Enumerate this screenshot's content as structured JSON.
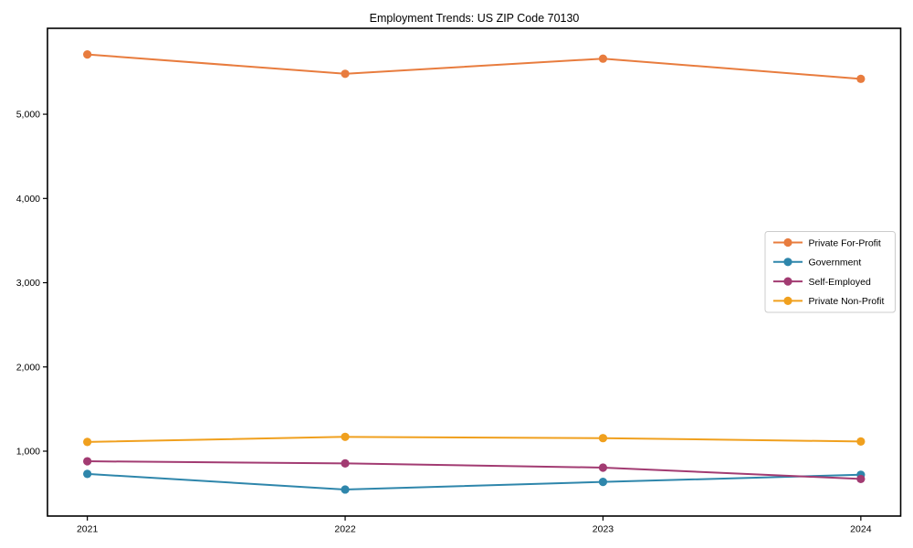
{
  "chart_data": {
    "type": "line",
    "title": "Employment Trends: US ZIP Code 70130",
    "categories": [
      "2021",
      "2022",
      "2023",
      "2024"
    ],
    "series": [
      {
        "name": "Private For-Profit",
        "color": "#E87C3E",
        "values": [
          5710,
          5480,
          5660,
          5420
        ]
      },
      {
        "name": "Government",
        "color": "#2E86AB",
        "values": [
          730,
          545,
          635,
          720
        ]
      },
      {
        "name": "Self-Employed",
        "color": "#A23B72",
        "values": [
          880,
          855,
          805,
          670
        ]
      },
      {
        "name": "Private Non-Profit",
        "color": "#F0A01E",
        "values": [
          1110,
          1170,
          1155,
          1115
        ]
      }
    ],
    "xlabel": "",
    "ylabel": "",
    "ylim": [
      230,
      6020
    ],
    "yticks": [
      1000,
      2000,
      3000,
      4000,
      5000
    ],
    "ytick_format": "comma",
    "grid": false,
    "frame": true,
    "marker": "circle",
    "axis_color": "#000000",
    "background": "#ffffff",
    "legend": {
      "position": "right-middle",
      "border_color": "#cccccc",
      "entries": [
        "Private For-Profit",
        "Government",
        "Self-Employed",
        "Private Non-Profit"
      ]
    }
  }
}
